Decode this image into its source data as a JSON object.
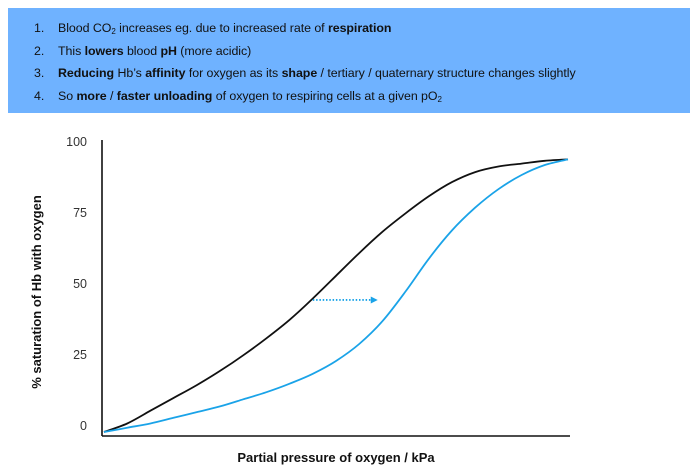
{
  "info_box": {
    "background": "#6fb2ff",
    "points": [
      {
        "number": "1.",
        "segments": [
          {
            "text": "Blood CO"
          },
          {
            "text": "2",
            "sub": true
          },
          {
            "text": " increases eg. due to increased rate of "
          },
          {
            "text": "respiration",
            "bold": true
          }
        ]
      },
      {
        "number": "2.",
        "segments": [
          {
            "text": "This "
          },
          {
            "text": "lowers",
            "bold": true
          },
          {
            "text": " blood "
          },
          {
            "text": "pH",
            "bold": true
          },
          {
            "text": " (more acidic)"
          }
        ]
      },
      {
        "number": "3.",
        "segments": [
          {
            "text": "Reducing",
            "bold": true
          },
          {
            "text": " Hb’s "
          },
          {
            "text": "affinity",
            "bold": true
          },
          {
            "text": " for oxygen as its "
          },
          {
            "text": "shape",
            "bold": true
          },
          {
            "text": " / tertiary / quaternary structure changes slightly"
          }
        ]
      },
      {
        "number": "4.",
        "segments": [
          {
            "text": "So "
          },
          {
            "text": "more",
            "bold": true
          },
          {
            "text": " / "
          },
          {
            "text": "faster unloading",
            "bold": true
          },
          {
            "text": " of oxygen to respiring cells at a given pO"
          },
          {
            "text": "2",
            "sub": true
          }
        ]
      }
    ]
  },
  "chart_data": {
    "type": "line",
    "xlabel": "Partial pressure of oxygen / kPa",
    "ylabel": "% saturation of Hb with oxygen",
    "ylim": [
      0,
      100
    ],
    "yticks": [
      0,
      25,
      50,
      75,
      100
    ],
    "x_tick_labels_shown": false,
    "grid": false,
    "legend": "none",
    "series": [
      {
        "color": "#111111",
        "x": [
          0,
          0.05,
          0.1,
          0.15,
          0.2,
          0.25,
          0.3,
          0.35,
          0.4,
          0.45,
          0.5,
          0.55,
          0.6,
          0.65,
          0.7,
          0.75,
          0.8,
          0.85,
          0.9,
          0.95,
          1.0
        ],
        "values": [
          0,
          3,
          7.5,
          12,
          16.5,
          21.5,
          27,
          33,
          39.5,
          47,
          55,
          63,
          70.5,
          77,
          83,
          88,
          91.5,
          93.5,
          94.5,
          95.5,
          96
        ]
      },
      {
        "color": "#1aa3e8",
        "x": [
          0,
          0.05,
          0.1,
          0.15,
          0.2,
          0.25,
          0.3,
          0.35,
          0.4,
          0.45,
          0.5,
          0.55,
          0.6,
          0.65,
          0.7,
          0.75,
          0.8,
          0.85,
          0.9,
          0.95,
          1.0
        ],
        "values": [
          0,
          1.5,
          3,
          5,
          7,
          9,
          11.5,
          14,
          17,
          20.5,
          25,
          31,
          39,
          49.5,
          61,
          71,
          79,
          85.5,
          90.5,
          94,
          96
        ]
      }
    ],
    "annotation": {
      "type": "arrow",
      "style": "dotted",
      "color": "#1aa3e8",
      "direction": "right",
      "x_from": 0.45,
      "x_to": 0.59,
      "y": 46.5
    }
  }
}
